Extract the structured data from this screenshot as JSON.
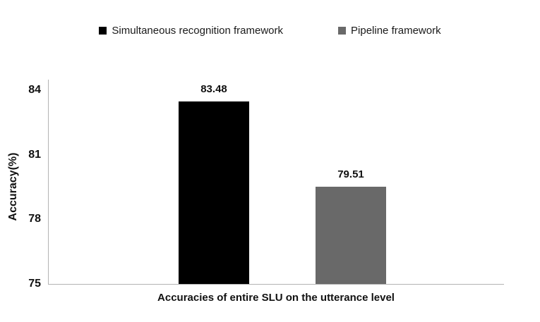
{
  "chart_data": {
    "type": "bar",
    "categories": [
      "Simultaneous recognition framework",
      "Pipeline framework"
    ],
    "values": [
      83.48,
      79.51
    ],
    "value_labels": [
      "83.48",
      "79.51"
    ],
    "bar_colors": [
      "#000000",
      "#696969"
    ],
    "title": "",
    "xlabel": "Accuracies of entire SLU on the utterance level",
    "ylabel": "Accuracy(%)",
    "ylim": [
      75,
      84
    ],
    "yticks": [
      75,
      78,
      81,
      84
    ],
    "grid": false,
    "legend_position": "top",
    "legend": [
      {
        "label": "Simultaneous recognition framework",
        "color": "#000000"
      },
      {
        "label": "Pipeline framework",
        "color": "#696969"
      }
    ],
    "axis_color": "#b3b3b3",
    "background_color": "#ffffff"
  }
}
